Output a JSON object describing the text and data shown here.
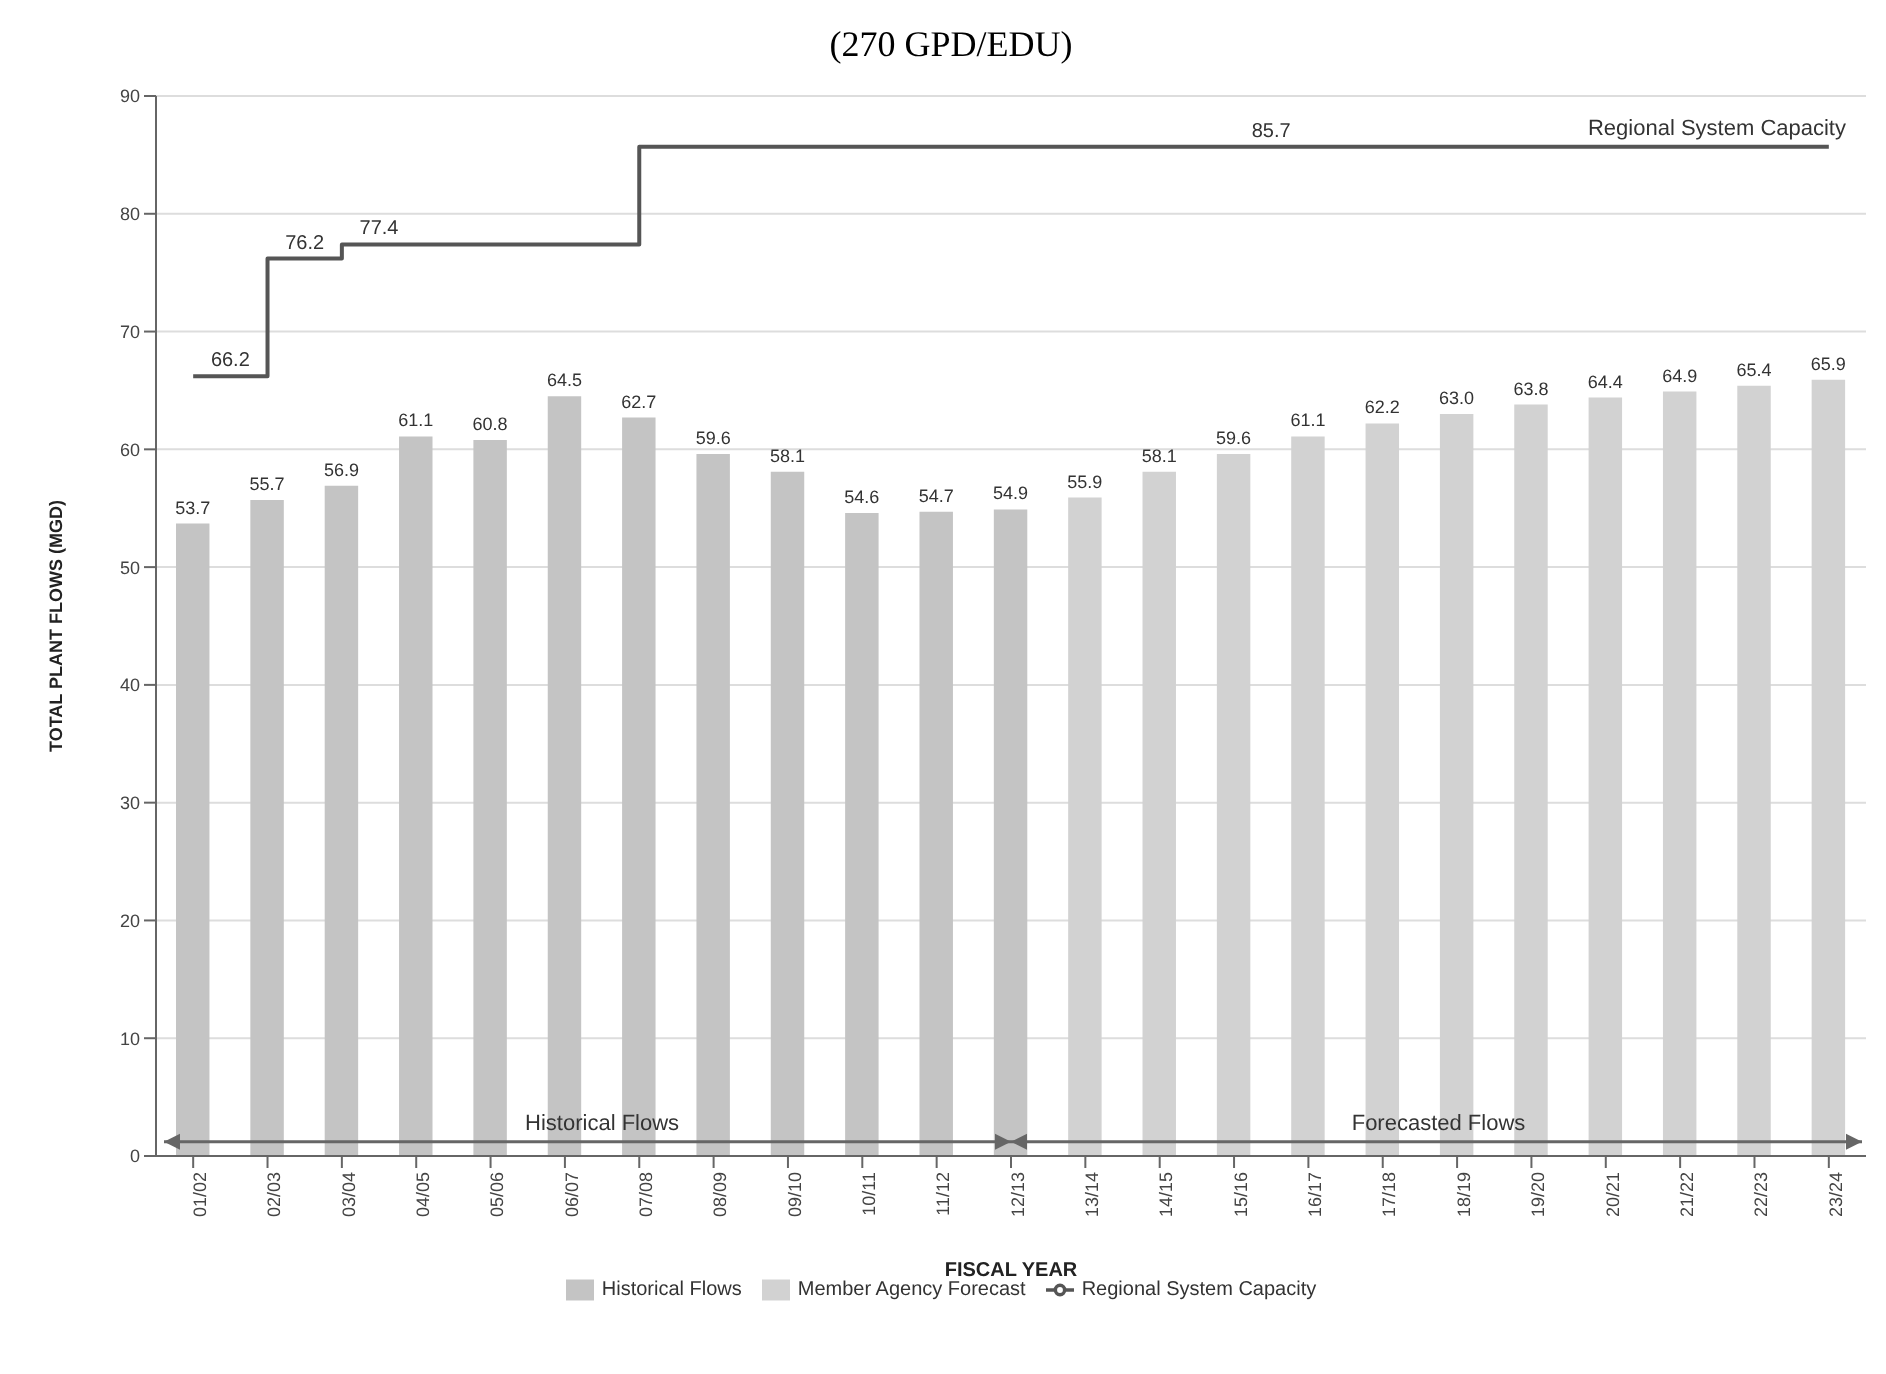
{
  "chart_data": {
    "type": "bar",
    "title": "(270 GPD/EDU)",
    "xlabel": "FISCAL YEAR",
    "ylabel": "TOTAL PLANT FLOWS (MGD)",
    "categories": [
      "01/02",
      "02/03",
      "03/04",
      "04/05",
      "05/06",
      "06/07",
      "07/08",
      "08/09",
      "09/10",
      "10/11",
      "11/12",
      "12/13",
      "13/14",
      "14/15",
      "15/16",
      "16/17",
      "17/18",
      "18/19",
      "19/20",
      "20/21",
      "21/22",
      "22/23",
      "23/24"
    ],
    "series": [
      {
        "name": "Historical Flows",
        "color": "#c4c4c4",
        "values": [
          53.7,
          55.7,
          56.9,
          61.1,
          60.8,
          64.5,
          62.7,
          59.6,
          58.1,
          54.6,
          54.7,
          54.9,
          null,
          null,
          null,
          null,
          null,
          null,
          null,
          null,
          null,
          null,
          null
        ]
      },
      {
        "name": "Member Agency Forecast",
        "color": "#d2d2d2",
        "values": [
          null,
          null,
          null,
          null,
          null,
          null,
          null,
          null,
          null,
          null,
          null,
          null,
          55.9,
          58.1,
          59.6,
          61.1,
          62.2,
          63.0,
          63.8,
          64.4,
          64.9,
          65.4,
          65.9
        ],
        "value_labels": [
          null,
          null,
          null,
          null,
          null,
          null,
          null,
          null,
          null,
          null,
          null,
          null,
          "55.9",
          "58.1",
          "59.6",
          "61.1",
          "62.2",
          "63.0",
          "63.8",
          "64.4",
          "64.9",
          "65.4",
          "65.9"
        ]
      },
      {
        "name": "Regional System Capacity",
        "type": "step",
        "color": "#555555",
        "values": [
          66.2,
          76.2,
          77.4,
          77.4,
          77.4,
          77.4,
          85.7,
          85.7,
          85.7,
          85.7,
          85.7,
          85.7,
          85.7,
          85.7,
          85.7,
          85.7,
          85.7,
          85.7,
          85.7,
          85.7,
          85.7,
          85.7,
          85.7
        ],
        "value_labels": [
          "66.2",
          "76.2",
          "77.4",
          null,
          null,
          null,
          null,
          null,
          null,
          null,
          null,
          null,
          null,
          null,
          "85.7",
          null,
          null,
          null,
          null,
          null,
          null,
          null,
          null
        ]
      }
    ],
    "data_labels": true,
    "annotations": [
      "Historical Flows",
      "Forecasted Flows",
      "Regional System Capacity"
    ],
    "ylim": [
      0,
      90
    ],
    "yticks": [
      0,
      10,
      20,
      30,
      40,
      50,
      60,
      70,
      80,
      90
    ],
    "grid": "y",
    "legend": "bottom"
  }
}
